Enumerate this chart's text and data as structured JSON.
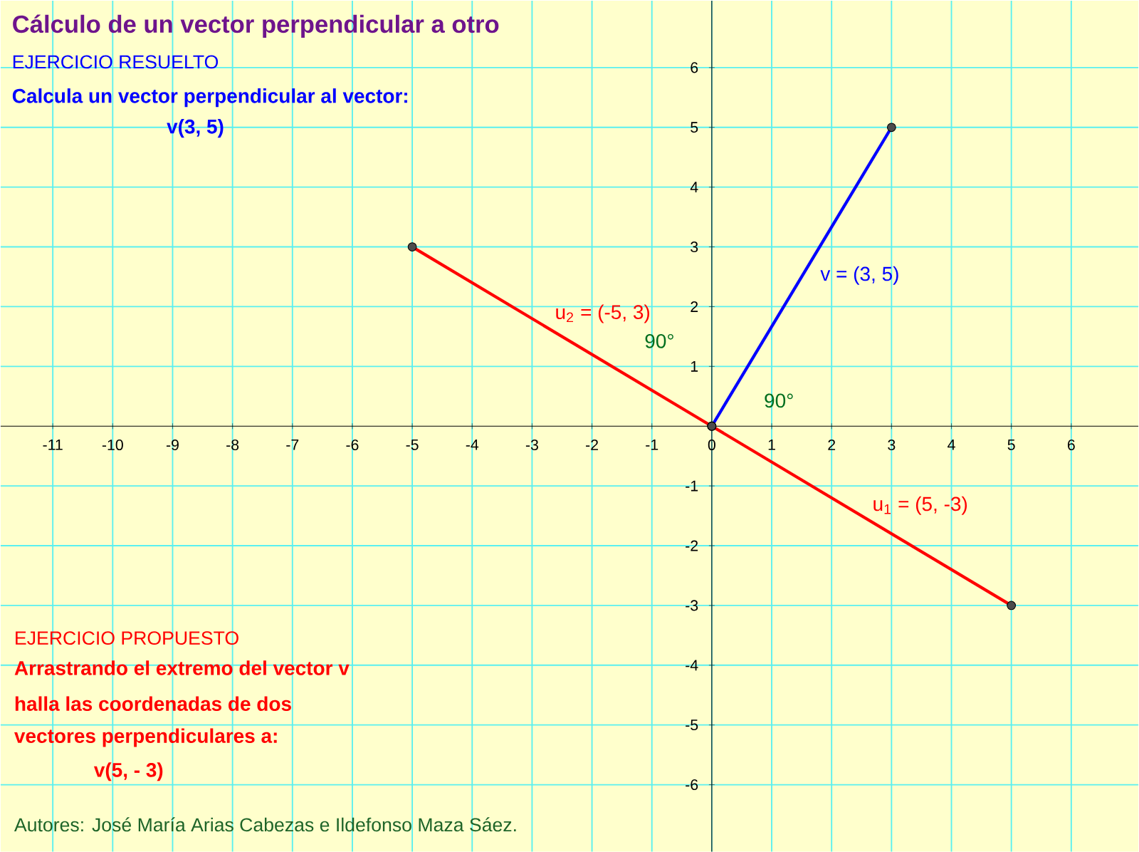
{
  "chart_data": {
    "type": "line",
    "title": "Cálculo de un vector perpendicular a otro",
    "series": [
      {
        "name": "v = (3, 5)",
        "color": "#0000ff",
        "x": [
          0,
          3
        ],
        "values": [
          0,
          5
        ]
      },
      {
        "name": "u$_{1}$ = (5, -3)",
        "color": "#ff0000",
        "x": [
          0,
          5
        ],
        "values": [
          0,
          -3
        ]
      },
      {
        "name": "u$_{2}$ = (-5, 3)",
        "color": "#ff0000",
        "x": [
          0,
          -5
        ],
        "values": [
          0,
          3
        ]
      }
    ],
    "xlim": [
      -11.87,
      7.12
    ],
    "ylim": [
      -7.12,
      7.12
    ],
    "xticks": [
      -11,
      -10,
      -9,
      -8,
      -7,
      -6,
      -5,
      -4,
      -3,
      -2,
      -1,
      0,
      1,
      2,
      3,
      4,
      5,
      6
    ],
    "yticks": [
      -6,
      -5,
      -4,
      -3,
      -2,
      -1,
      1,
      2,
      3,
      4,
      5,
      6
    ],
    "grid": true,
    "marker": "circle",
    "line_style": "solid",
    "annotations": [
      "EJERCICIO RESUELTO",
      "Calcula un vector perpendicular al vector:",
      "v(3, 5)",
      "EJERCICIO PROPUESTO",
      "Arrastrando el extremo del vector v",
      "halla las coordenadas de dos",
      "vectores perpendiculares a:",
      "v(5, - 3)",
      "Autores: José María Arias Cabezas e Ildefonso Maza Sáez.",
      "90°",
      "90°"
    ]
  }
}
